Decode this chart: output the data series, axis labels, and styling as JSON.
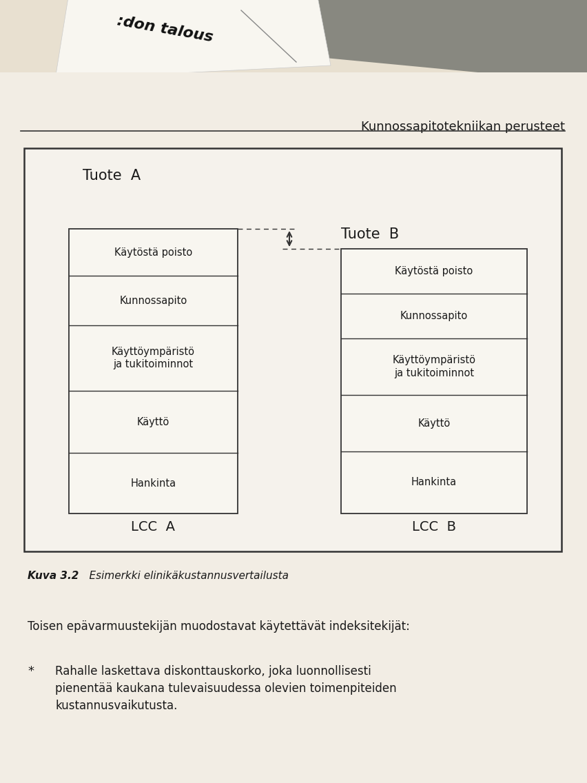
{
  "page_bg": "#e8e0d0",
  "paper_bg": "#f2ede4",
  "box_bg": "#f5f2ec",
  "border_color": "#333333",
  "text_color": "#1a1a1a",
  "header_text": "Kunnossapitotekniikan perusteet",
  "tuote_a_label": "Tuote  A",
  "tuote_b_label": "Tuote  B",
  "lcc_a_label": "LCC  A",
  "lcc_b_label": "LCC  B",
  "rows_a": [
    {
      "label": "Käytöstä poisto"
    },
    {
      "label": "Kunnossapito"
    },
    {
      "label": "Käyttöympäristö\nja tukitoiminnot"
    },
    {
      "label": "Käyttö"
    },
    {
      "label": "Hankinta"
    }
  ],
  "rows_b": [
    {
      "label": "Käytöstä poisto"
    },
    {
      "label": "Kunnossapito"
    },
    {
      "label": "Käyttöympäristö\nja tukitoiminnot"
    },
    {
      "label": "Käyttö"
    },
    {
      "label": "Hankinta"
    }
  ],
  "caption_bold": "Kuva 3.2",
  "caption_italic": "    Esimerkki elinikäkustannusvertailusta",
  "body_text_1": "Toisen epävarmuustekijän muodostavat käytettävät indeksitekijät:",
  "body_text_2": "Rahalle laskettava diskonttauskorko, joka luonnollisesti\npienentää kaukana tulevaisuudessa olevien toimenpiteiden\nkustannusvaikutusta."
}
